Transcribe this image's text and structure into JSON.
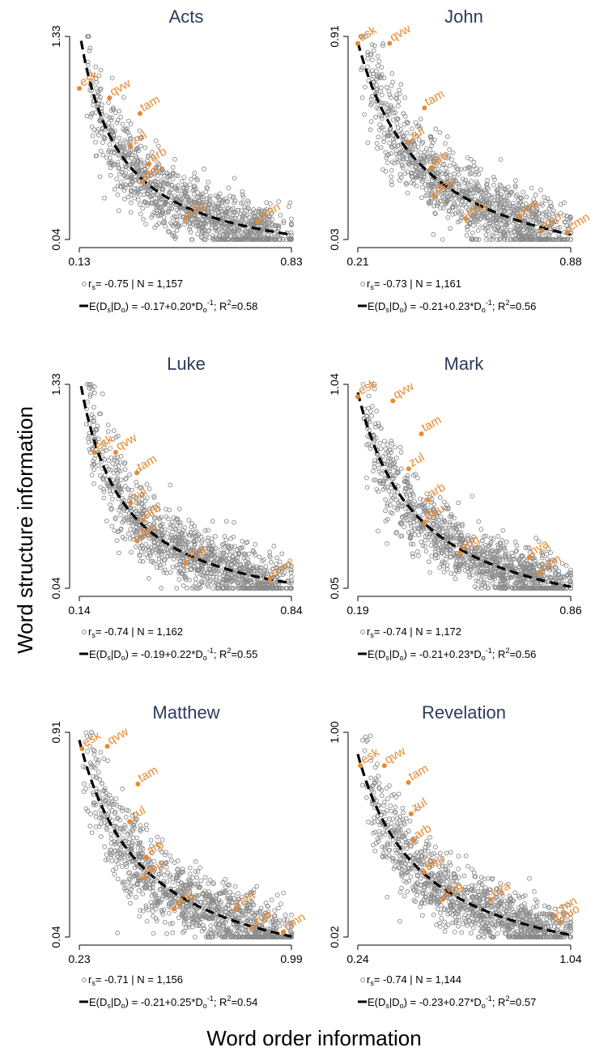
{
  "figure": {
    "ylabel": "Word structure information",
    "xlabel": "Word order information"
  },
  "chart_data": [
    {
      "type": "scatter",
      "title": "Acts",
      "xticks": [
        "0.13",
        "0.83"
      ],
      "yticks": [
        "0.04",
        "1.33"
      ],
      "xlim": [
        0.13,
        0.83
      ],
      "ylim": [
        0.04,
        1.33
      ],
      "fit": {
        "a": -0.17,
        "b": 0.2
      },
      "stats": {
        "rs": "-0.75",
        "n": "1,157",
        "a": "-0.17",
        "b": "0.20",
        "r2": "0.58"
      },
      "highlighted": [
        {
          "label": "esk",
          "x": 0.13,
          "y": 1.0
        },
        {
          "label": "qvw",
          "x": 0.23,
          "y": 0.94
        },
        {
          "label": "tam",
          "x": 0.33,
          "y": 0.84
        },
        {
          "label": "zul",
          "x": 0.3,
          "y": 0.63
        },
        {
          "label": "arb",
          "x": 0.36,
          "y": 0.52
        },
        {
          "label": "deu",
          "x": 0.34,
          "y": 0.41
        },
        {
          "label": "eng",
          "x": 0.48,
          "y": 0.17
        },
        {
          "label": "cmn",
          "x": 0.72,
          "y": 0.15
        }
      ],
      "points": {
        "count": 1157,
        "x_range": [
          0.13,
          0.83
        ],
        "y_range": [
          0.04,
          1.33
        ],
        "spread": 0.13
      }
    },
    {
      "type": "scatter",
      "title": "John",
      "xticks": [
        "0.21",
        "0.88"
      ],
      "yticks": [
        "0.03",
        "0.91"
      ],
      "xlim": [
        0.21,
        0.88
      ],
      "ylim": [
        0.03,
        0.91
      ],
      "fit": {
        "a": -0.21,
        "b": 0.23
      },
      "stats": {
        "rs": "-0.73",
        "n": "1,161",
        "a": "-0.21",
        "b": "0.23",
        "r2": "0.56"
      },
      "highlighted": [
        {
          "label": "esk",
          "x": 0.21,
          "y": 0.88
        },
        {
          "label": "qvw",
          "x": 0.31,
          "y": 0.88
        },
        {
          "label": "tam",
          "x": 0.42,
          "y": 0.6
        },
        {
          "label": "zul",
          "x": 0.37,
          "y": 0.45
        },
        {
          "label": "arb",
          "x": 0.44,
          "y": 0.34
        },
        {
          "label": "deu",
          "x": 0.45,
          "y": 0.22
        },
        {
          "label": "eng",
          "x": 0.55,
          "y": 0.12
        },
        {
          "label": "nya",
          "x": 0.72,
          "y": 0.13
        },
        {
          "label": "xuo",
          "x": 0.79,
          "y": 0.07
        },
        {
          "label": "cmn",
          "x": 0.87,
          "y": 0.06
        }
      ],
      "points": {
        "count": 1161,
        "x_range": [
          0.21,
          0.88
        ],
        "y_range": [
          0.03,
          0.91
        ],
        "spread": 0.1
      }
    },
    {
      "type": "scatter",
      "title": "Luke",
      "xticks": [
        "0.14",
        "0.84"
      ],
      "yticks": [
        "0.04",
        "1.33"
      ],
      "xlim": [
        0.14,
        0.84
      ],
      "ylim": [
        0.04,
        1.33
      ],
      "fit": {
        "a": -0.19,
        "b": 0.22
      },
      "stats": {
        "rs": "-0.74",
        "n": "1,162",
        "a": "-0.19",
        "b": "0.22",
        "r2": "0.55"
      },
      "highlighted": [
        {
          "label": "esk",
          "x": 0.19,
          "y": 0.9
        },
        {
          "label": "qvw",
          "x": 0.26,
          "y": 0.9
        },
        {
          "label": "tam",
          "x": 0.33,
          "y": 0.77
        },
        {
          "label": "zul",
          "x": 0.31,
          "y": 0.58
        },
        {
          "label": "arb",
          "x": 0.35,
          "y": 0.47
        },
        {
          "label": "deu",
          "x": 0.33,
          "y": 0.34
        },
        {
          "label": "eng",
          "x": 0.49,
          "y": 0.2
        },
        {
          "label": "cmn",
          "x": 0.77,
          "y": 0.1
        }
      ],
      "points": {
        "count": 1162,
        "x_range": [
          0.14,
          0.84
        ],
        "y_range": [
          0.04,
          1.33
        ],
        "spread": 0.13
      }
    },
    {
      "type": "scatter",
      "title": "Mark",
      "xticks": [
        "0.19",
        "0.86"
      ],
      "yticks": [
        "0.05",
        "1.04"
      ],
      "xlim": [
        0.19,
        0.86
      ],
      "ylim": [
        0.05,
        1.04
      ],
      "fit": {
        "a": -0.21,
        "b": 0.23
      },
      "stats": {
        "rs": "-0.74",
        "n": "1,172",
        "a": "-0.21",
        "b": "0.23",
        "r2": "0.56"
      },
      "highlighted": [
        {
          "label": "esk",
          "x": 0.19,
          "y": 0.98
        },
        {
          "label": "qvw",
          "x": 0.3,
          "y": 0.96
        },
        {
          "label": "tam",
          "x": 0.39,
          "y": 0.8
        },
        {
          "label": "zul",
          "x": 0.35,
          "y": 0.63
        },
        {
          "label": "arb",
          "x": 0.41,
          "y": 0.48
        },
        {
          "label": "deu",
          "x": 0.4,
          "y": 0.37
        },
        {
          "label": "eng",
          "x": 0.51,
          "y": 0.22
        },
        {
          "label": "nya",
          "x": 0.73,
          "y": 0.2
        },
        {
          "label": "cmn",
          "x": 0.76,
          "y": 0.12
        }
      ],
      "points": {
        "count": 1172,
        "x_range": [
          0.19,
          0.86
        ],
        "y_range": [
          0.05,
          1.04
        ],
        "spread": 0.1
      }
    },
    {
      "type": "scatter",
      "title": "Matthew",
      "xticks": [
        "0.23",
        "0.99"
      ],
      "yticks": [
        "0.04",
        "0.91"
      ],
      "xlim": [
        0.23,
        0.99
      ],
      "ylim": [
        0.04,
        0.91
      ],
      "fit": {
        "a": -0.21,
        "b": 0.25
      },
      "stats": {
        "rs": "-0.71",
        "n": "1,156",
        "a": "-0.21",
        "b": "0.25",
        "r2": "0.54"
      },
      "highlighted": [
        {
          "label": "esk",
          "x": 0.24,
          "y": 0.84
        },
        {
          "label": "qvw",
          "x": 0.33,
          "y": 0.85
        },
        {
          "label": "tam",
          "x": 0.44,
          "y": 0.69
        },
        {
          "label": "zul",
          "x": 0.41,
          "y": 0.53
        },
        {
          "label": "arb",
          "x": 0.47,
          "y": 0.38
        },
        {
          "label": "deu",
          "x": 0.46,
          "y": 0.29
        },
        {
          "label": "eng",
          "x": 0.57,
          "y": 0.16
        },
        {
          "label": "nya",
          "x": 0.79,
          "y": 0.16
        },
        {
          "label": "xuo",
          "x": 0.85,
          "y": 0.08
        },
        {
          "label": "cmn",
          "x": 0.96,
          "y": 0.06
        }
      ],
      "points": {
        "count": 1156,
        "x_range": [
          0.23,
          0.99
        ],
        "y_range": [
          0.04,
          0.91
        ],
        "spread": 0.1
      }
    },
    {
      "type": "scatter",
      "title": "Revelation",
      "xticks": [
        "0.24",
        "1.04"
      ],
      "yticks": [
        "0.02",
        "1.00"
      ],
      "xlim": [
        0.24,
        1.04
      ],
      "ylim": [
        0.02,
        1.0
      ],
      "fit": {
        "a": -0.23,
        "b": 0.27
      },
      "stats": {
        "rs": "-0.74",
        "n": "1,144",
        "a": "-0.23",
        "b": "0.27",
        "r2": "0.57"
      },
      "highlighted": [
        {
          "label": "esk",
          "x": 0.25,
          "y": 0.84
        },
        {
          "label": "qvw",
          "x": 0.34,
          "y": 0.84
        },
        {
          "label": "tam",
          "x": 0.43,
          "y": 0.76
        },
        {
          "label": "zul",
          "x": 0.44,
          "y": 0.61
        },
        {
          "label": "arb",
          "x": 0.45,
          "y": 0.48
        },
        {
          "label": "deu",
          "x": 0.49,
          "y": 0.33
        },
        {
          "label": "eng",
          "x": 0.56,
          "y": 0.2
        },
        {
          "label": "nya",
          "x": 0.74,
          "y": 0.2
        },
        {
          "label": "cmn",
          "x": 0.98,
          "y": 0.12
        },
        {
          "label": "xuo",
          "x": 1.0,
          "y": 0.09
        }
      ],
      "points": {
        "count": 1144,
        "x_range": [
          0.24,
          1.04
        ],
        "y_range": [
          0.02,
          1.0
        ],
        "spread": 0.1
      }
    }
  ],
  "colors": {
    "points": "#8a8a8a",
    "highlight": "#e8892e",
    "title": "#2b3a5e",
    "fit_line": "#000000"
  }
}
